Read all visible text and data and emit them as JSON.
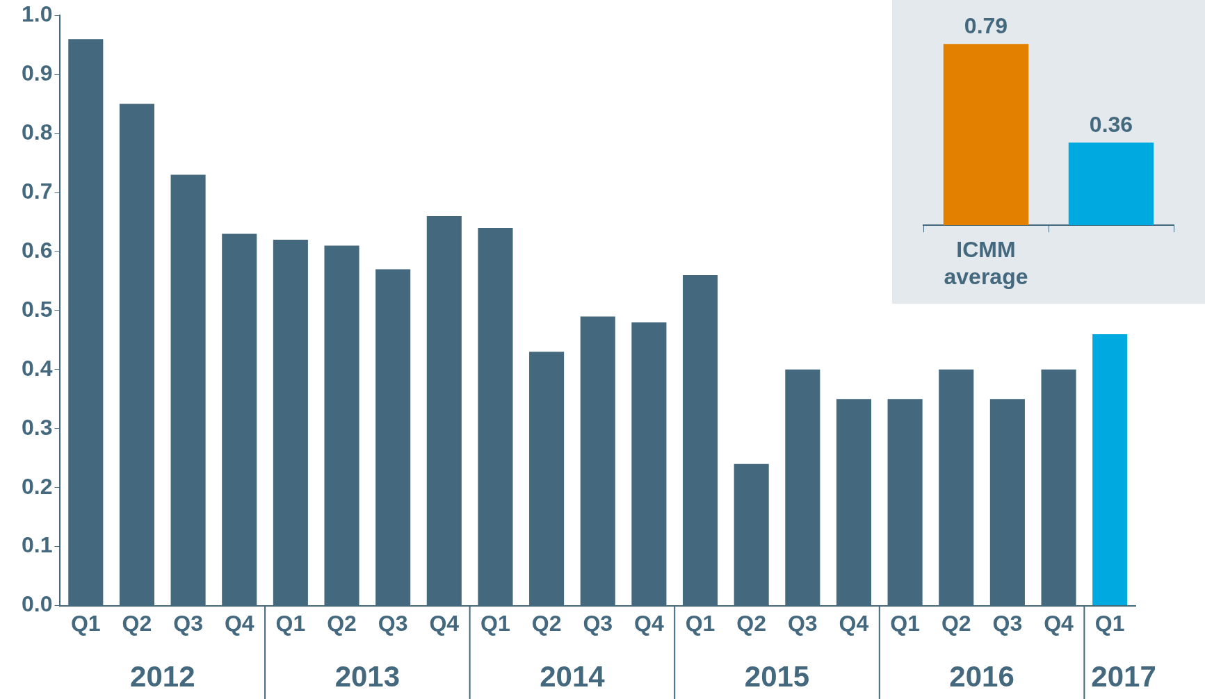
{
  "chart_data": [
    {
      "type": "bar",
      "categories": [
        "Q1",
        "Q2",
        "Q3",
        "Q4",
        "Q1",
        "Q2",
        "Q3",
        "Q4",
        "Q1",
        "Q2",
        "Q3",
        "Q4",
        "Q1",
        "Q2",
        "Q3",
        "Q4",
        "Q1",
        "Q2",
        "Q3",
        "Q4",
        "Q1"
      ],
      "values": [
        0.96,
        0.85,
        0.73,
        0.63,
        0.62,
        0.61,
        0.57,
        0.66,
        0.64,
        0.43,
        0.49,
        0.48,
        0.56,
        0.24,
        0.4,
        0.35,
        0.35,
        0.4,
        0.35,
        0.4,
        0.46
      ],
      "colors": [
        "#44687d",
        "#44687d",
        "#44687d",
        "#44687d",
        "#44687d",
        "#44687d",
        "#44687d",
        "#44687d",
        "#44687d",
        "#44687d",
        "#44687d",
        "#44687d",
        "#44687d",
        "#44687d",
        "#44687d",
        "#44687d",
        "#44687d",
        "#44687d",
        "#44687d",
        "#44687d",
        "#00a9e0"
      ],
      "ylim": [
        0,
        1
      ],
      "yticks": [
        {
          "value": 0,
          "label": "0.0"
        },
        0.1,
        0.2,
        0.3,
        0.4,
        0.5,
        0.6,
        0.7,
        0.8,
        0.9,
        {
          "value": 1,
          "label": "1.0"
        }
      ],
      "grid": false,
      "legend": false,
      "annotations": [
        "2012",
        "2013",
        "2014",
        "2015",
        "2016",
        "2017"
      ]
    },
    {
      "type": "bar",
      "categories": [
        "ICMM average",
        null
      ],
      "values": [
        0.79,
        0.36
      ],
      "colors": [
        "#e38000",
        "#00a9e0"
      ],
      "data_labels": true,
      "grid": false,
      "legend": false
    }
  ]
}
